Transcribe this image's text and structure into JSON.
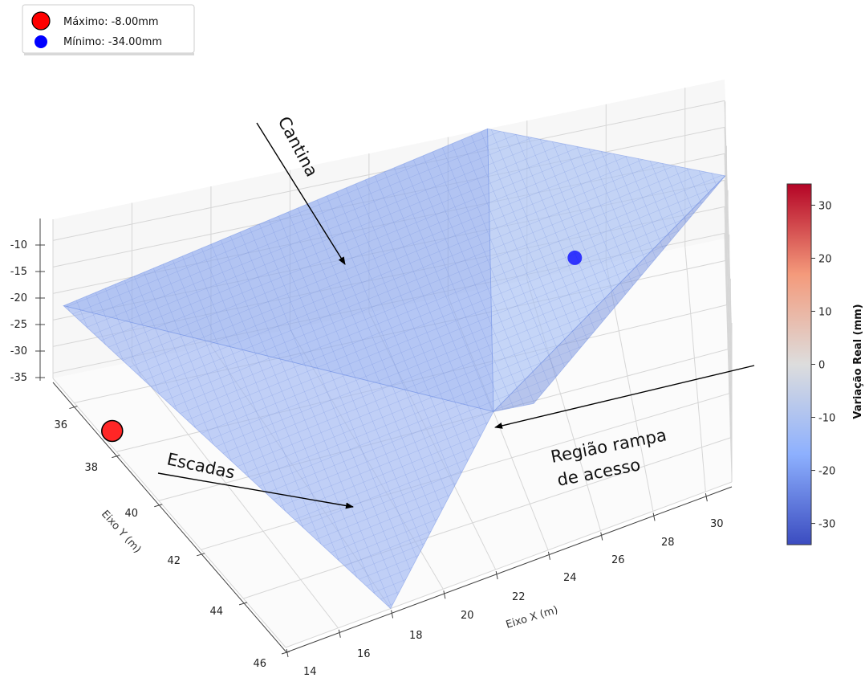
{
  "chart_data": {
    "type": "surface3d",
    "title": "",
    "x_axis": {
      "label": "Eixo X (m)",
      "ticks": [
        14,
        16,
        18,
        20,
        22,
        24,
        26,
        28,
        30
      ],
      "range": [
        14,
        31
      ]
    },
    "y_axis": {
      "label": "Eixo Y (m)",
      "ticks": [
        36,
        38,
        40,
        42,
        44,
        46
      ],
      "range": [
        35,
        46
      ]
    },
    "z_axis": {
      "label": "",
      "ticks": [
        -10,
        -15,
        -20,
        -25,
        -30,
        -35
      ],
      "range": [
        -36,
        -6
      ]
    },
    "grid": true,
    "surface": {
      "color": "#8da9f0",
      "alpha": 0.65,
      "vertices": [
        {
          "name": "far-left-corner",
          "x": 14,
          "y": 35.5,
          "z": -20
        },
        {
          "name": "far-peak",
          "x": 25,
          "y": 35,
          "z": -6
        },
        {
          "name": "right-corner",
          "x": 31,
          "y": 36,
          "z": -20
        },
        {
          "name": "near-bottom",
          "x": 18,
          "y": 46,
          "z": -36
        },
        {
          "name": "ramp-valley",
          "x": 24,
          "y": 40,
          "z": -36
        }
      ]
    },
    "points": [
      {
        "name": "Máximo",
        "label": "Máximo: -8.00mm",
        "value": -8.0,
        "color": "#ff0000",
        "x": 14,
        "y": 37.8,
        "z": -33
      },
      {
        "name": "Mínimo",
        "label": "Mínimo: -34.00mm",
        "value": -34.0,
        "color": "#0000ff",
        "x": 27,
        "y": 36.5,
        "z": -27
      }
    ],
    "annotations": [
      {
        "text": "Cantina",
        "target": "top surface"
      },
      {
        "text": "Escadas",
        "target": "near-left slope"
      },
      {
        "lines": [
          "Região rampa",
          "de acesso"
        ],
        "target": "ramp valley"
      }
    ],
    "colorbar": {
      "label": "Variação Real (mm)",
      "range": [
        -34,
        34
      ],
      "ticks": [
        30,
        20,
        10,
        0,
        -10,
        -20,
        -30
      ],
      "cmap": [
        "#3b4cc0",
        "#8db0fe",
        "#dddddd",
        "#f49a7b",
        "#b40426"
      ]
    },
    "legend": {
      "placement": "top-left",
      "entries": [
        "Máximo: -8.00mm",
        "Mínimo: -34.00mm"
      ]
    }
  }
}
